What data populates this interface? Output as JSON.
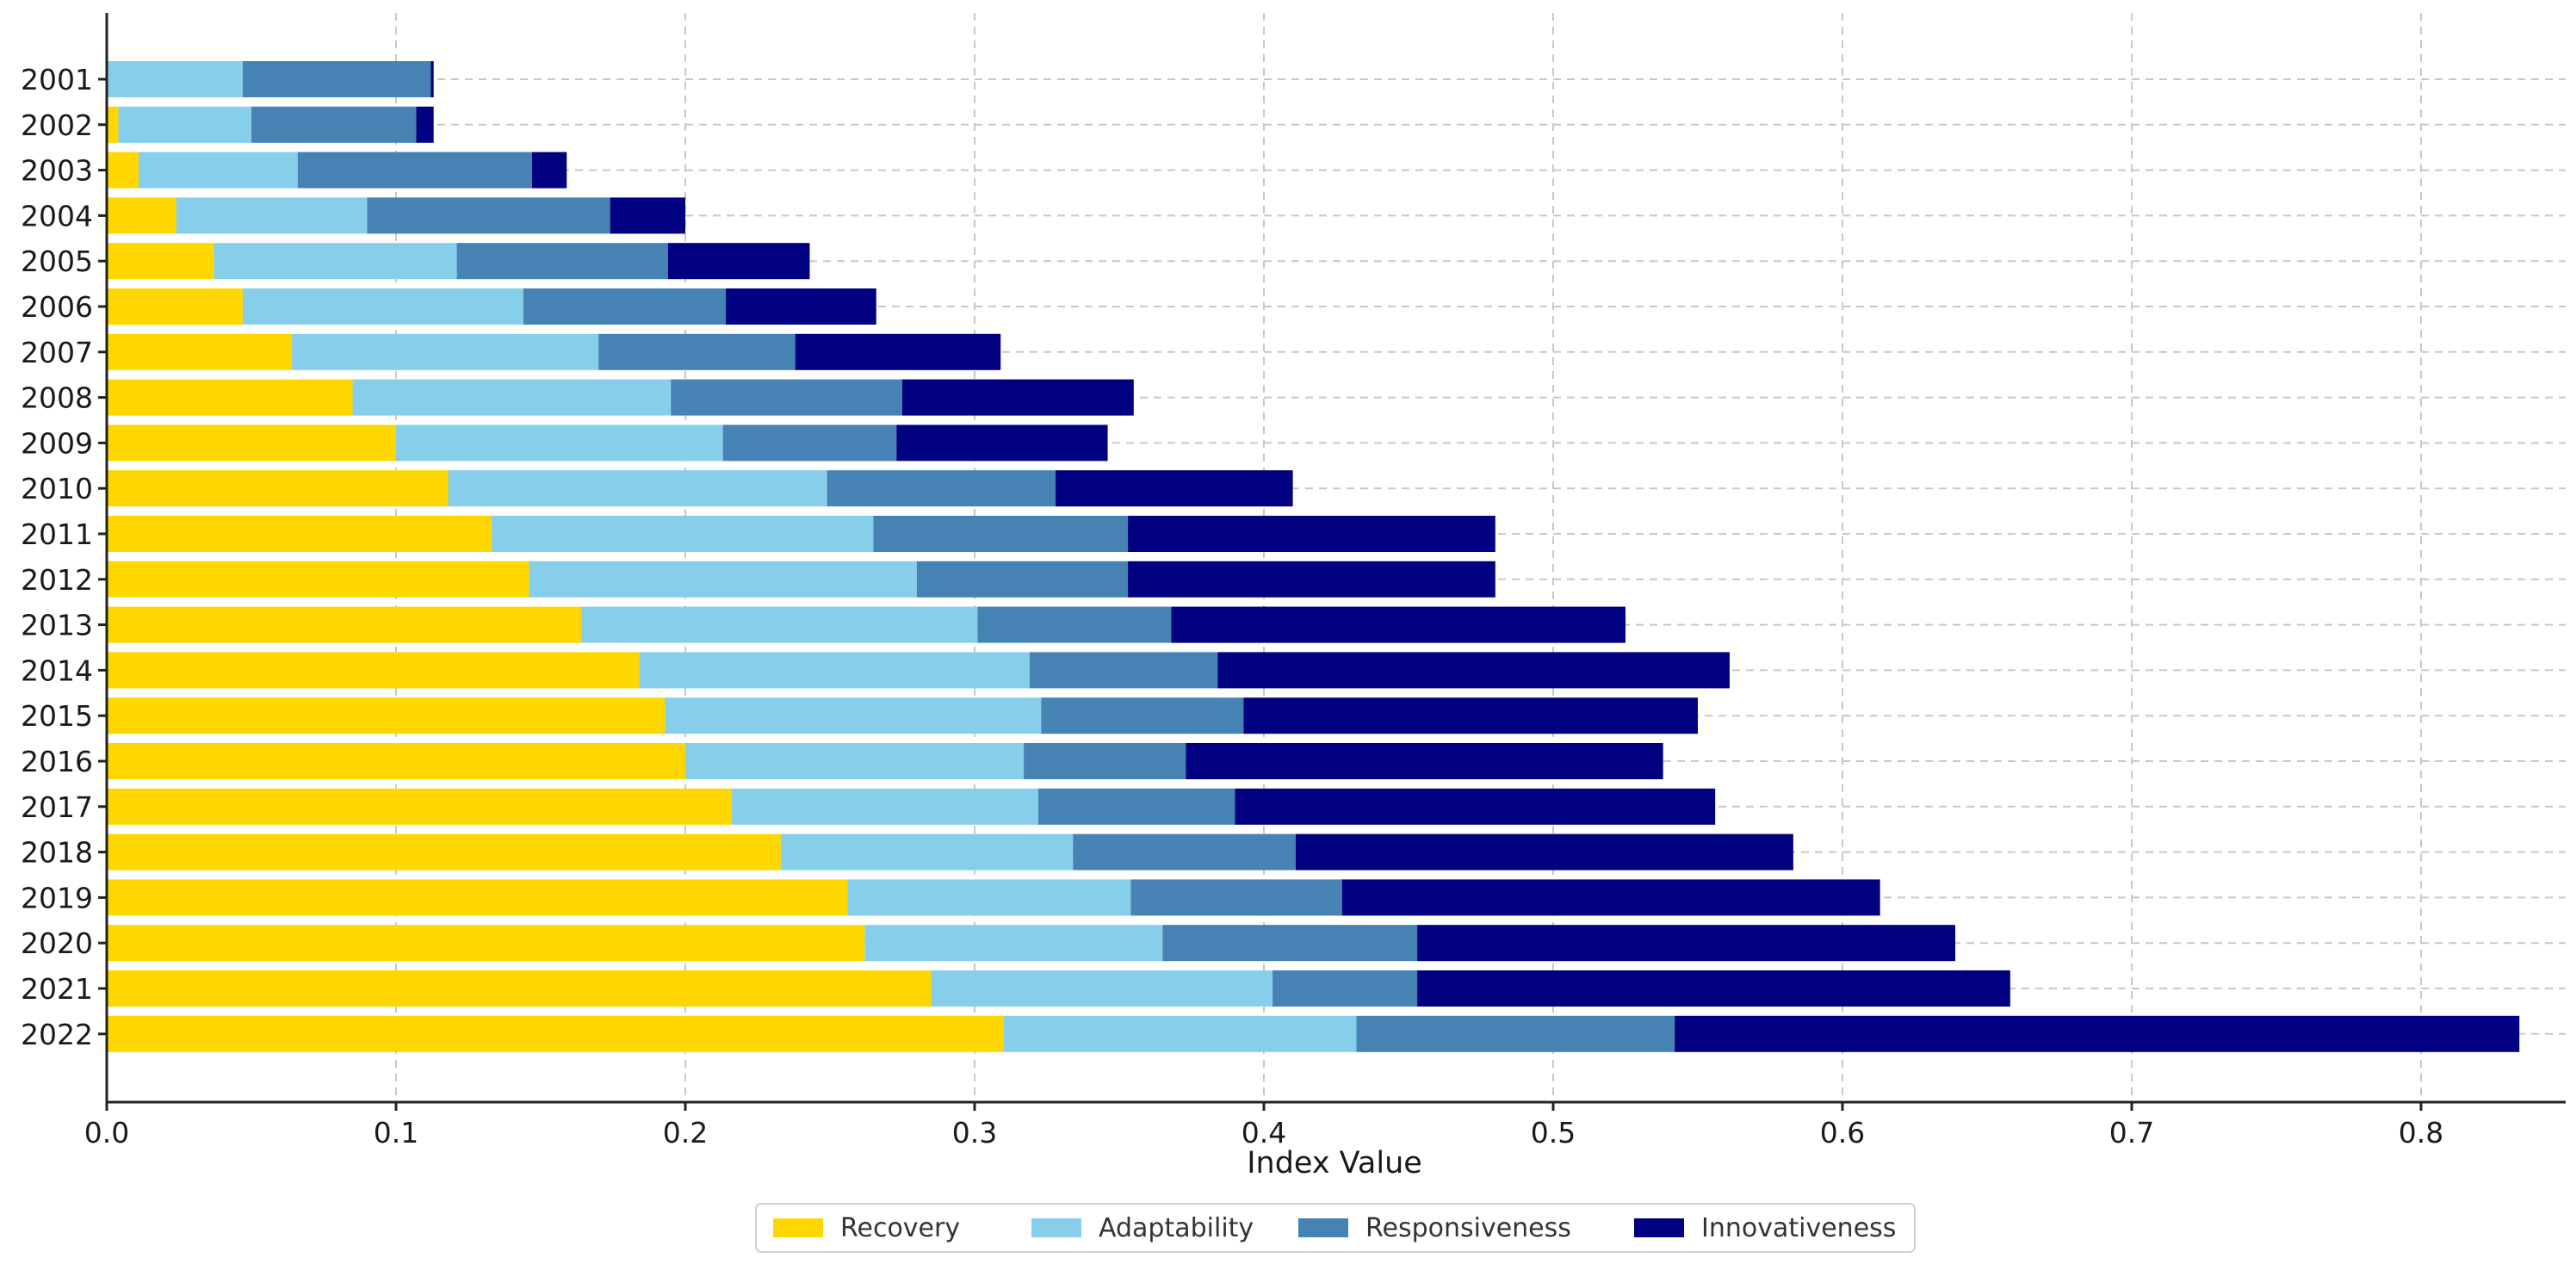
{
  "chart_data": {
    "type": "bar",
    "orientation": "horizontal",
    "stacked": true,
    "title": "",
    "xlabel": "Index Value",
    "ylabel": "",
    "xlim": [
      0,
      0.85
    ],
    "xticks": [
      "0.0",
      "0.1",
      "0.2",
      "0.3",
      "0.4",
      "0.5",
      "0.6",
      "0.7",
      "0.8"
    ],
    "grid": true,
    "legend_position": "bottom-center",
    "categories": [
      "2001",
      "2002",
      "2003",
      "2004",
      "2005",
      "2006",
      "2007",
      "2008",
      "2009",
      "2010",
      "2011",
      "2012",
      "2013",
      "2014",
      "2015",
      "2016",
      "2017",
      "2018",
      "2019",
      "2020",
      "2021",
      "2022"
    ],
    "series": [
      {
        "name": "Recovery",
        "color": "#FFD700",
        "values": [
          0.0,
          0.004,
          0.011,
          0.024,
          0.037,
          0.047,
          0.064,
          0.085,
          0.1,
          0.118,
          0.133,
          0.146,
          0.164,
          0.184,
          0.193,
          0.2,
          0.216,
          0.233,
          0.256,
          0.262,
          0.285,
          0.31
        ]
      },
      {
        "name": "Adaptability",
        "color": "#87CEEB",
        "values": [
          0.047,
          0.046,
          0.055,
          0.066,
          0.084,
          0.097,
          0.106,
          0.11,
          0.113,
          0.131,
          0.132,
          0.134,
          0.137,
          0.135,
          0.13,
          0.117,
          0.106,
          0.101,
          0.098,
          0.103,
          0.118,
          0.122
        ]
      },
      {
        "name": "Responsiveness",
        "color": "#4682B4",
        "values": [
          0.065,
          0.057,
          0.081,
          0.084,
          0.073,
          0.07,
          0.068,
          0.08,
          0.06,
          0.079,
          0.088,
          0.073,
          0.067,
          0.065,
          0.07,
          0.056,
          0.068,
          0.077,
          0.073,
          0.088,
          0.05,
          0.11
        ]
      },
      {
        "name": "Innovativeness",
        "color": "#000080",
        "values": [
          0.001,
          0.006,
          0.012,
          0.026,
          0.049,
          0.052,
          0.071,
          0.08,
          0.073,
          0.082,
          0.127,
          0.127,
          0.157,
          0.177,
          0.157,
          0.165,
          0.166,
          0.172,
          0.186,
          0.186,
          0.205,
          0.292
        ]
      }
    ]
  }
}
